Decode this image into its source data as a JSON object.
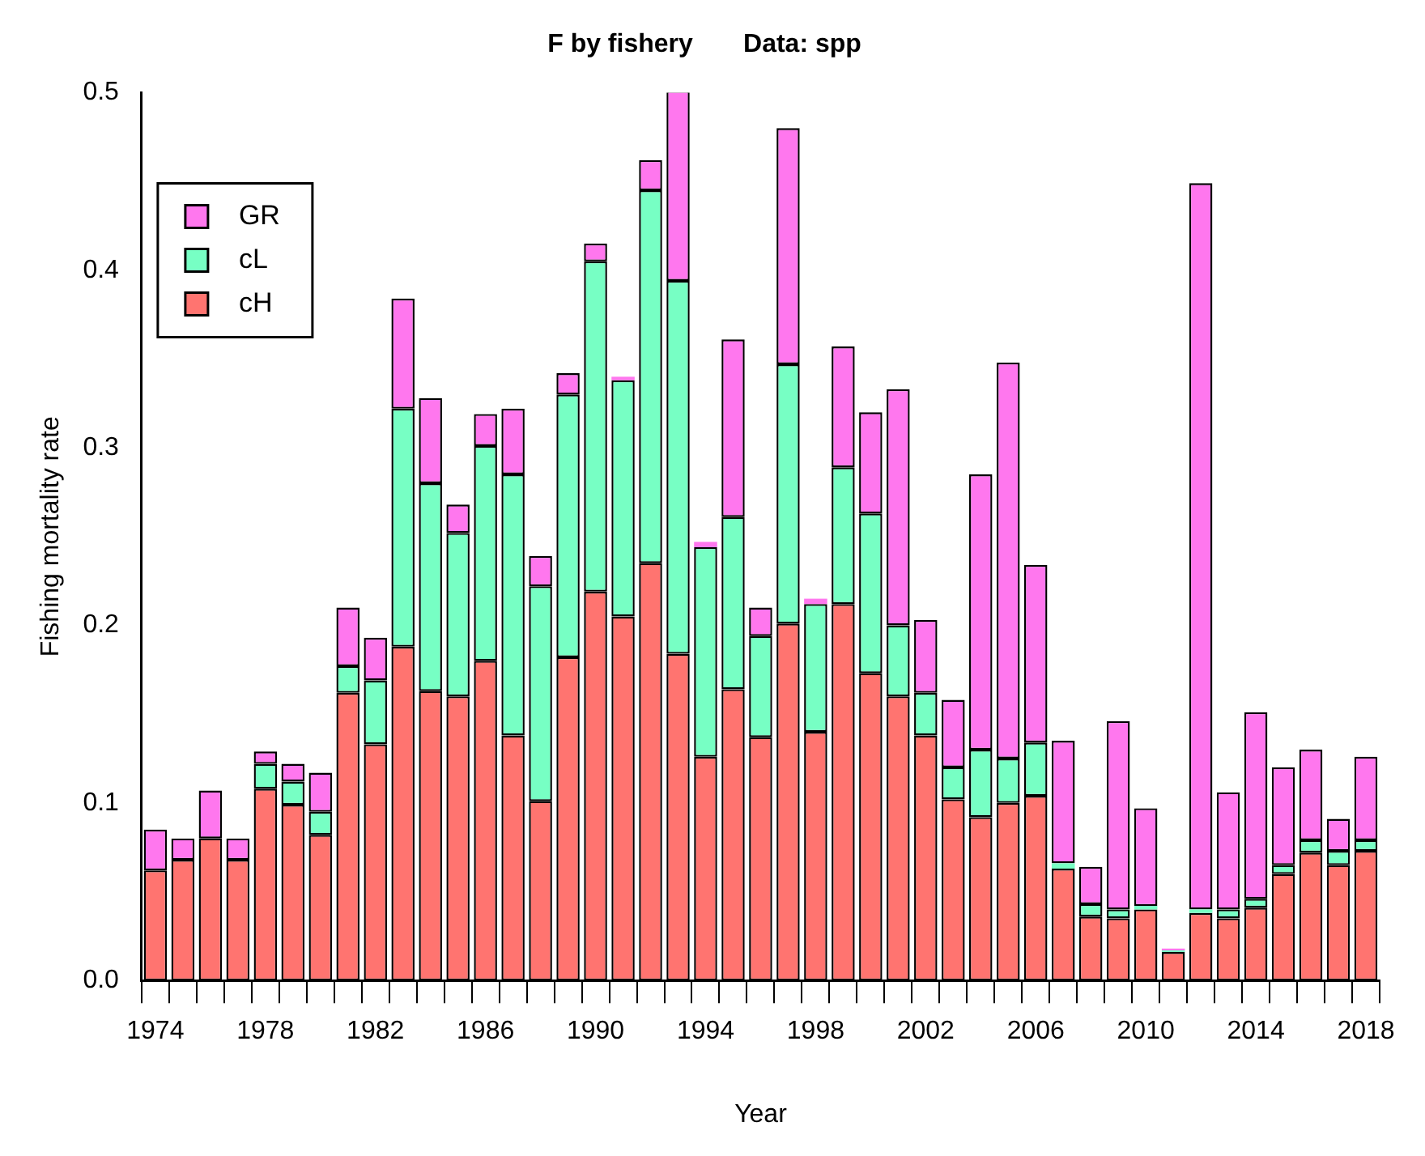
{
  "chart_data": {
    "type": "bar",
    "title": "F by fishery       Data: spp",
    "xlabel": "Year",
    "ylabel": "Fishing mortality rate",
    "categories": [
      "1974",
      null,
      null,
      null,
      "1978",
      null,
      null,
      null,
      "1982",
      null,
      null,
      null,
      "1986",
      null,
      null,
      null,
      "1990",
      null,
      null,
      null,
      "1994",
      null,
      null,
      null,
      "1998",
      null,
      null,
      null,
      "2002",
      null,
      null,
      null,
      "2006",
      null,
      null,
      null,
      "2010",
      null,
      null,
      null,
      "2014",
      null,
      null,
      null,
      "2018"
    ],
    "stacked": true,
    "series": [
      {
        "name": "cH",
        "color": "#ff7470",
        "values": [
          0.062,
          0.068,
          0.08,
          0.068,
          0.108,
          0.099,
          0.082,
          0.162,
          0.133,
          0.188,
          0.163,
          0.16,
          0.18,
          0.138,
          0.101,
          0.182,
          0.219,
          0.205,
          0.235,
          0.184,
          0.126,
          0.164,
          0.137,
          0.201,
          0.14,
          0.212,
          0.173,
          0.16,
          0.138,
          0.102,
          0.092,
          0.1,
          0.104,
          0.063,
          0.036,
          0.035,
          0.04,
          0.016,
          0.038,
          0.035,
          0.041,
          0.06,
          0.072,
          0.065,
          0.073
        ]
      },
      {
        "name": "cL",
        "color": "#77ffc4",
        "values": [
          0,
          0,
          0,
          0,
          0.014,
          0.013,
          0.013,
          0.015,
          0.036,
          0.134,
          0.117,
          0.092,
          0.121,
          0.147,
          0.121,
          0.148,
          0.186,
          0.133,
          0.21,
          0.21,
          0.118,
          0.097,
          0.057,
          0.146,
          0.072,
          0.077,
          0.09,
          0.04,
          0.024,
          0.018,
          0.038,
          0.025,
          0.03,
          0.003,
          0.007,
          0.005,
          0.002,
          0.001,
          0.002,
          0.005,
          0.005,
          0.005,
          0.007,
          0.008,
          0.006
        ]
      },
      {
        "name": "GR",
        "color": "#ff77ee",
        "values": [
          0.023,
          0.012,
          0.027,
          0.012,
          0.007,
          0.01,
          0.022,
          0.033,
          0.024,
          0.062,
          0.048,
          0.016,
          0.018,
          0.037,
          0.017,
          0.012,
          0.01,
          0.002,
          0.017,
          0.107,
          0.003,
          0.1,
          0.016,
          0.133,
          0.003,
          0.068,
          0.057,
          0.133,
          0.041,
          0.038,
          0.155,
          0.223,
          0.1,
          0.069,
          0.021,
          0.106,
          0.055,
          0.001,
          0.409,
          0.066,
          0.105,
          0.055,
          0.051,
          0.018,
          0.047
        ]
      }
    ],
    "ylim": [
      0,
      0.5
    ],
    "yticks": [
      {
        "value": 0,
        "label": "0.0"
      },
      {
        "value": 0.1,
        "label": "0.1"
      },
      {
        "value": 0.2,
        "label": "0.2"
      },
      {
        "value": 0.3,
        "label": "0.3"
      },
      {
        "value": 0.4,
        "label": "0.4"
      },
      {
        "value": 0.5,
        "label": "0.5"
      }
    ],
    "grid": false,
    "legend": "top left"
  }
}
